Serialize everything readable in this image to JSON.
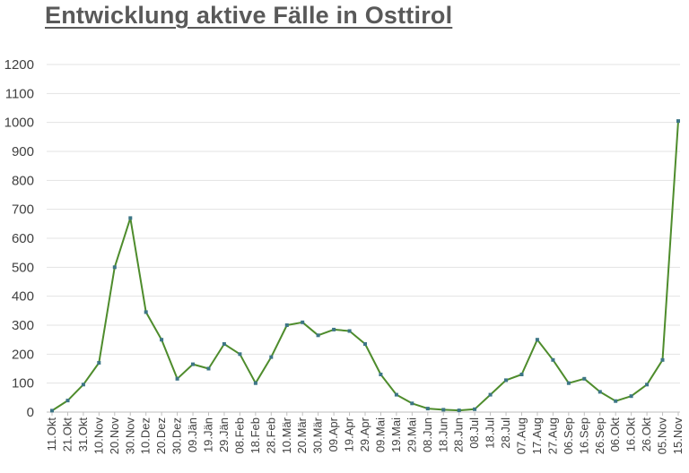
{
  "chart_data": {
    "type": "line",
    "title": "Entwicklung aktive Fälle in Osttirol",
    "xlabel": "",
    "ylabel": "",
    "ylim": [
      0,
      1200
    ],
    "yticks": [
      "0",
      "100",
      "200",
      "300",
      "400",
      "500",
      "600",
      "700",
      "800",
      "900",
      "1000",
      "1100",
      "1200"
    ],
    "grid": true,
    "legend": "none",
    "line_color": "#4e8c2c",
    "marker_color": "#3d7686",
    "x_categories": [
      "11.Okt",
      "21.Okt",
      "31.Okt",
      "10.Nov",
      "20.Nov",
      "30.Nov",
      "10.Dez",
      "20.Dez",
      "30.Dez",
      "09.Jän",
      "19.Jän",
      "29.Jän",
      "08.Feb",
      "18.Feb",
      "28.Feb",
      "10.Mär",
      "20.Mär",
      "30.Mär",
      "09.Apr",
      "19.Apr",
      "29.Apr",
      "09.Mai",
      "19.Mai",
      "29.Mai",
      "08.Jun",
      "18.Jun",
      "28.Jun",
      "08.Jul",
      "18.Jul",
      "28.Jul",
      "07.Aug",
      "17.Aug",
      "27.Aug",
      "06.Sep",
      "16.Sep",
      "26.Sep",
      "06.Okt",
      "16.Okt",
      "26.Okt",
      "05.Nov",
      "15.Nov"
    ],
    "series": [
      {
        "values": [
          5,
          40,
          95,
          170,
          500,
          670,
          345,
          250,
          115,
          165,
          150,
          235,
          200,
          100,
          190,
          300,
          310,
          265,
          285,
          280,
          235,
          130,
          60,
          30,
          12,
          8,
          6,
          10,
          60,
          110,
          130,
          250,
          180,
          100,
          115,
          70,
          38,
          55,
          95,
          180,
          1005
        ]
      }
    ]
  }
}
